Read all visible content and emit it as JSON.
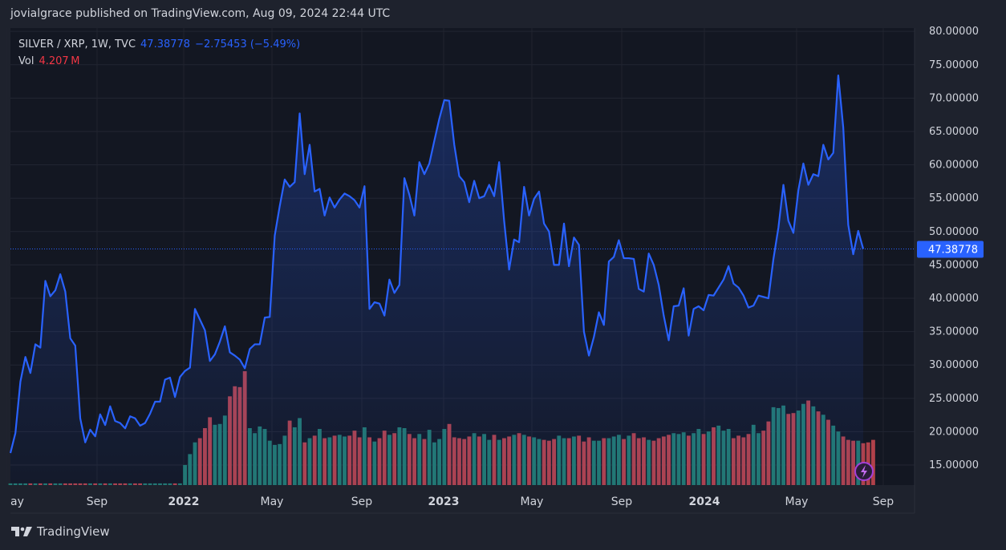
{
  "header": {
    "text": "jovialgrace published on TradingView.com, Aug 09, 2024 22:44 UTC"
  },
  "legend": {
    "symbol": "SILVER / XRP, 1W, TVC",
    "last_value": "47.38778",
    "change": "−2.75453 (−5.49%)",
    "vol_label": "Vol",
    "vol_value": "4.207 M"
  },
  "footer": {
    "brand": "TradingView"
  },
  "colors": {
    "background": "#1e222d",
    "panel": "#131722",
    "line": "#2962ff",
    "vol_up": "#22786e",
    "vol_down": "#b0414a",
    "price_tag": "#2962ff"
  },
  "chart_data": {
    "type": "line",
    "title": "SILVER / XRP, 1W, TVC",
    "x_labels": [
      "ay",
      "Sep",
      "2022",
      "May",
      "Sep",
      "2023",
      "May",
      "Sep",
      "2024",
      "May",
      "Sep"
    ],
    "bold_x_labels": [
      "2022",
      "2023",
      "2024"
    ],
    "y_ticks": [
      "15.00000",
      "20.00000",
      "25.00000",
      "30.00000",
      "35.00000",
      "40.00000",
      "45.00000",
      "50.00000",
      "55.00000",
      "60.00000",
      "65.00000",
      "70.00000",
      "75.00000",
      "80.00000"
    ],
    "ylim": [
      12,
      80.5
    ],
    "last_price_label": "47.38778",
    "last_price": 47.38778,
    "grid": true,
    "series": [
      {
        "type": "line",
        "values": [
          16.8,
          19.8,
          27.5,
          31.2,
          28.8,
          33.1,
          32.6,
          42.6,
          40.3,
          41.2,
          43.6,
          41.0,
          34.0,
          32.9,
          22.0,
          18.4,
          20.3,
          19.3,
          22.6,
          21.0,
          23.8,
          21.6,
          21.3,
          20.5,
          22.3,
          22.0,
          20.9,
          21.3,
          22.7,
          24.5,
          24.5,
          27.8,
          28.1,
          25.2,
          28.2,
          29.1,
          29.6,
          38.4,
          36.8,
          35.2,
          30.6,
          31.6,
          33.5,
          35.8,
          31.9,
          31.4,
          30.8,
          29.5,
          32.4,
          33.1,
          33.1,
          37.1,
          37.2,
          49.4,
          53.8,
          57.8,
          56.7,
          57.4,
          67.7,
          58.6,
          63.0,
          56.0,
          56.4,
          52.4,
          55.1,
          53.6,
          54.8,
          55.7,
          55.3,
          54.7,
          53.6,
          56.8,
          38.4,
          39.4,
          39.2,
          37.4,
          42.8,
          40.8,
          42.0,
          58.0,
          55.5,
          52.4,
          60.4,
          58.6,
          60.2,
          63.6,
          66.9,
          69.7,
          69.6,
          63.0,
          58.3,
          57.4,
          54.4,
          57.6,
          55.0,
          55.3,
          57.0,
          55.3,
          60.4,
          51.6,
          44.3,
          48.8,
          48.4,
          56.7,
          52.4,
          54.9,
          56.0,
          51.2,
          50.0,
          45.0,
          45.0,
          51.2,
          44.8,
          49.1,
          48.0,
          35.0,
          31.4,
          34.2,
          37.9,
          36.0,
          45.5,
          46.2,
          48.7,
          46.0,
          46.0,
          45.9,
          41.4,
          41.0,
          46.7,
          45.0,
          42.0,
          37.4,
          33.7,
          38.8,
          38.9,
          41.5,
          34.4,
          38.4,
          38.8,
          38.2,
          40.5,
          40.4,
          41.6,
          42.8,
          44.8,
          42.2,
          41.6,
          40.4,
          38.6,
          38.9,
          40.4,
          40.2,
          40.0,
          45.9,
          50.6,
          57.0,
          51.6,
          49.8,
          56.2,
          60.2,
          57.0,
          58.6,
          58.3,
          63.0,
          60.8,
          61.8,
          73.4,
          65.6,
          51.0,
          46.6,
          50.1,
          47.4
        ]
      },
      {
        "type": "volume",
        "values": [
          0.2,
          0.2,
          0.2,
          0.2,
          0.2,
          0.2,
          0.2,
          0.2,
          0.2,
          0.2,
          0.2,
          0.2,
          0.2,
          0.2,
          0.2,
          0.2,
          0.2,
          0.2,
          0.2,
          0.2,
          0.2,
          0.2,
          0.2,
          0.2,
          0.2,
          0.2,
          0.2,
          0.2,
          0.2,
          0.2,
          0.2,
          0.2,
          0.2,
          0.2,
          0.2,
          2.4,
          3.7,
          5.1,
          5.6,
          6.8,
          8.1,
          7.2,
          7.3,
          8.3,
          10.6,
          11.8,
          11.7,
          13.6,
          6.8,
          6.2,
          7.0,
          6.7,
          5.3,
          4.8,
          4.9,
          5.9,
          7.7,
          6.9,
          8.0,
          5.1,
          5.6,
          5.9,
          6.7,
          5.6,
          5.7,
          5.9,
          6.0,
          5.8,
          5.9,
          6.5,
          5.7,
          6.9,
          5.7,
          5.2,
          5.6,
          6.5,
          6.0,
          6.2,
          6.9,
          6.8,
          6.1,
          5.6,
          6.1,
          5.5,
          6.6,
          5.1,
          5.5,
          6.7,
          7.3,
          5.7,
          5.6,
          5.5,
          5.8,
          6.2,
          5.8,
          6.1,
          5.4,
          6.0,
          5.4,
          5.6,
          5.8,
          6.0,
          6.2,
          6.0,
          5.8,
          5.7,
          5.5,
          5.4,
          5.3,
          5.5,
          5.9,
          5.6,
          5.6,
          5.8,
          5.9,
          5.2,
          5.7,
          5.3,
          5.3,
          5.6,
          5.6,
          5.8,
          6.0,
          5.5,
          5.9,
          6.2,
          5.6,
          5.7,
          5.4,
          5.3,
          5.6,
          5.8,
          6.0,
          6.2,
          6.1,
          6.3,
          5.9,
          6.2,
          6.7,
          6.1,
          6.4,
          6.9,
          7.1,
          6.5,
          6.7,
          5.6,
          5.9,
          5.7,
          6.1,
          7.2,
          6.2,
          6.5,
          7.6,
          9.3,
          9.2,
          9.5,
          8.5,
          8.6,
          8.9,
          9.7,
          10.1,
          9.4,
          8.8,
          8.4,
          7.8,
          7.1,
          6.4,
          5.8,
          5.4,
          5.3,
          5.3,
          5.0,
          5.1,
          5.4
        ]
      }
    ]
  }
}
